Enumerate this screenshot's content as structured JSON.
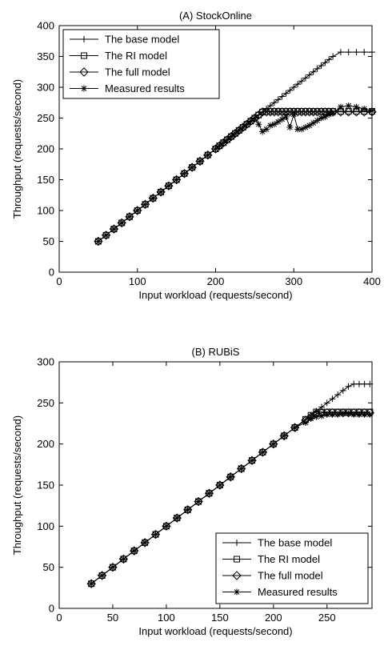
{
  "chart_data": [
    {
      "type": "line",
      "title": "(A) StockOnline",
      "xlabel": "Input workload (requests/second)",
      "ylabel": "Throughput (requests/second)",
      "xlim": [
        0,
        400
      ],
      "ylim": [
        0,
        400
      ],
      "xticks": [
        "0",
        "100",
        "200",
        "300",
        "400"
      ],
      "yticks": [
        "0",
        "50",
        "100",
        "150",
        "200",
        "250",
        "300",
        "350",
        "400"
      ],
      "legend_position": "top-left",
      "grid": false,
      "series": [
        {
          "name": "The base model",
          "marker": "plus",
          "x": [
            50,
            60,
            70,
            80,
            90,
            100,
            110,
            120,
            130,
            140,
            150,
            160,
            170,
            180,
            190,
            200,
            205,
            210,
            215,
            220,
            225,
            230,
            235,
            240,
            245,
            250,
            255,
            260,
            265,
            270,
            275,
            280,
            285,
            290,
            295,
            300,
            305,
            310,
            315,
            320,
            325,
            330,
            335,
            340,
            345,
            350,
            360,
            370,
            380,
            390,
            400
          ],
          "y": [
            50,
            60,
            70,
            80,
            90,
            100,
            110,
            120,
            130,
            140,
            150,
            160,
            170,
            180,
            190,
            200,
            205,
            210,
            215,
            220,
            225,
            230,
            235,
            240,
            245,
            250,
            255,
            260,
            265,
            270,
            275,
            280,
            285,
            290,
            295,
            300,
            305,
            310,
            315,
            320,
            325,
            330,
            335,
            340,
            345,
            350,
            357,
            357,
            357,
            357,
            357
          ]
        },
        {
          "name": "The RI model",
          "marker": "square",
          "x": [
            50,
            60,
            70,
            80,
            90,
            100,
            110,
            120,
            130,
            140,
            150,
            160,
            170,
            180,
            190,
            200,
            205,
            210,
            215,
            220,
            225,
            230,
            235,
            240,
            245,
            250,
            255,
            260,
            265,
            270,
            275,
            280,
            285,
            290,
            295,
            300,
            305,
            310,
            315,
            320,
            325,
            330,
            335,
            340,
            345,
            350,
            360,
            370,
            380,
            390,
            400
          ],
          "y": [
            50,
            60,
            70,
            80,
            90,
            100,
            110,
            120,
            130,
            140,
            150,
            160,
            170,
            180,
            190,
            200,
            205,
            210,
            215,
            220,
            225,
            230,
            235,
            240,
            245,
            250,
            255,
            260,
            261,
            261,
            261,
            261,
            261,
            261,
            261,
            261,
            261,
            261,
            261,
            261,
            261,
            261,
            261,
            261,
            261,
            261,
            261,
            261,
            261,
            261,
            261
          ]
        },
        {
          "name": "The full model",
          "marker": "diamond",
          "x": [
            50,
            60,
            70,
            80,
            90,
            100,
            110,
            120,
            130,
            140,
            150,
            160,
            170,
            180,
            190,
            200,
            205,
            210,
            215,
            220,
            225,
            230,
            235,
            240,
            245,
            250,
            255,
            260,
            265,
            270,
            275,
            280,
            285,
            290,
            295,
            300,
            305,
            310,
            315,
            320,
            325,
            330,
            335,
            340,
            345,
            350,
            360,
            370,
            380,
            390,
            400
          ],
          "y": [
            50,
            60,
            70,
            80,
            90,
            100,
            110,
            120,
            130,
            140,
            150,
            160,
            170,
            180,
            190,
            200,
            205,
            210,
            215,
            220,
            225,
            230,
            235,
            240,
            245,
            250,
            255,
            260,
            260,
            260,
            260,
            260,
            260,
            260,
            260,
            260,
            260,
            260,
            260,
            260,
            260,
            260,
            260,
            260,
            260,
            260,
            260,
            260,
            260,
            260,
            260
          ]
        },
        {
          "name": "Measured results",
          "marker": "asterisk",
          "x": [
            50,
            60,
            70,
            80,
            90,
            100,
            110,
            120,
            130,
            140,
            150,
            160,
            170,
            180,
            190,
            200,
            205,
            210,
            215,
            220,
            225,
            230,
            235,
            240,
            245,
            250,
            255,
            260,
            265,
            270,
            275,
            280,
            285,
            290,
            295,
            300,
            305,
            310,
            315,
            320,
            325,
            330,
            335,
            340,
            345,
            350,
            360,
            370,
            380,
            390,
            400
          ],
          "y": [
            50,
            60,
            70,
            80,
            90,
            100,
            110,
            120,
            130,
            140,
            150,
            160,
            170,
            180,
            190,
            200,
            205,
            210,
            215,
            220,
            225,
            230,
            235,
            240,
            245,
            250,
            240,
            228,
            232,
            238,
            240,
            244,
            248,
            252,
            235,
            256,
            232,
            232,
            235,
            238,
            242,
            246,
            250,
            252,
            256,
            258,
            268,
            270,
            268,
            265,
            262
          ]
        }
      ]
    },
    {
      "type": "line",
      "title": "(B) RUBiS",
      "xlabel": "Input workload (requests/second)",
      "ylabel": "Throughput (requests/second)",
      "xlim": [
        0,
        292
      ],
      "ylim": [
        0,
        300
      ],
      "xticks": [
        "0",
        "50",
        "100",
        "150",
        "200",
        "250"
      ],
      "yticks": [
        "0",
        "50",
        "100",
        "150",
        "200",
        "250",
        "300"
      ],
      "legend_position": "bottom-right",
      "grid": false,
      "series": [
        {
          "name": "The base model",
          "marker": "plus",
          "x": [
            30,
            40,
            50,
            60,
            70,
            80,
            90,
            100,
            110,
            120,
            130,
            140,
            150,
            160,
            170,
            180,
            190,
            200,
            210,
            220,
            230,
            235,
            240,
            245,
            250,
            255,
            260,
            265,
            270,
            275,
            280,
            285,
            290
          ],
          "y": [
            30,
            40,
            50,
            60,
            70,
            80,
            90,
            100,
            110,
            120,
            130,
            140,
            150,
            160,
            170,
            180,
            190,
            200,
            210,
            220,
            230,
            235,
            240,
            245,
            250,
            255,
            260,
            265,
            270,
            273,
            273,
            273,
            273
          ]
        },
        {
          "name": "The RI model",
          "marker": "square",
          "x": [
            30,
            40,
            50,
            60,
            70,
            80,
            90,
            100,
            110,
            120,
            130,
            140,
            150,
            160,
            170,
            180,
            190,
            200,
            210,
            220,
            230,
            235,
            240,
            245,
            250,
            255,
            260,
            265,
            270,
            275,
            280,
            285,
            290
          ],
          "y": [
            30,
            40,
            50,
            60,
            70,
            80,
            90,
            100,
            110,
            120,
            130,
            140,
            150,
            160,
            170,
            180,
            190,
            200,
            210,
            220,
            230,
            235,
            239,
            239,
            239,
            239,
            239,
            239,
            239,
            239,
            239,
            239,
            239
          ]
        },
        {
          "name": "The full model",
          "marker": "diamond",
          "x": [
            30,
            40,
            50,
            60,
            70,
            80,
            90,
            100,
            110,
            120,
            130,
            140,
            150,
            160,
            170,
            180,
            190,
            200,
            210,
            220,
            230,
            235,
            240,
            245,
            250,
            255,
            260,
            265,
            270,
            275,
            280,
            285,
            290
          ],
          "y": [
            30,
            40,
            50,
            60,
            70,
            80,
            90,
            100,
            110,
            120,
            130,
            140,
            150,
            160,
            170,
            180,
            190,
            200,
            210,
            220,
            229,
            233,
            237,
            238,
            238,
            238,
            238,
            238,
            238,
            238,
            238,
            238,
            238
          ]
        },
        {
          "name": "Measured results",
          "marker": "asterisk",
          "x": [
            30,
            40,
            50,
            60,
            70,
            80,
            90,
            100,
            110,
            120,
            130,
            140,
            150,
            160,
            170,
            180,
            190,
            200,
            210,
            220,
            230,
            235,
            240,
            245,
            250,
            255,
            260,
            265,
            270,
            275,
            280,
            285,
            290
          ],
          "y": [
            30,
            40,
            50,
            60,
            70,
            80,
            90,
            100,
            110,
            120,
            130,
            140,
            150,
            160,
            170,
            180,
            190,
            200,
            210,
            220,
            226,
            231,
            233,
            234,
            236,
            236,
            236,
            237,
            237,
            236,
            236,
            236,
            236
          ]
        }
      ]
    }
  ]
}
